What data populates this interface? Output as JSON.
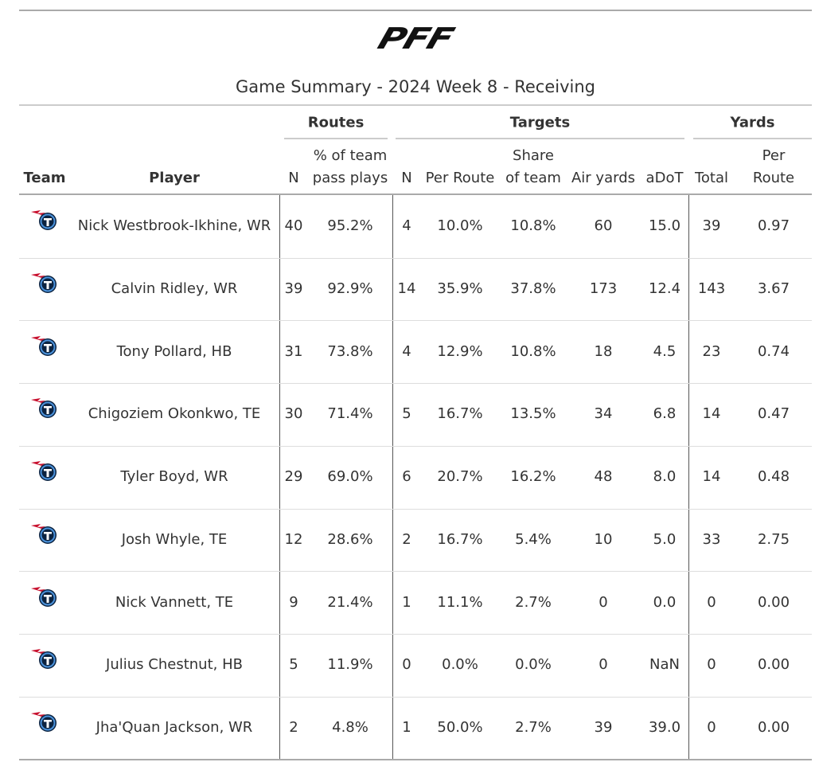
{
  "header": {
    "logo": "PFF",
    "subtitle": "Game Summary - 2024 Week 8 - Receiving"
  },
  "table": {
    "groups": [
      {
        "label": "Routes"
      },
      {
        "label": "Targets"
      },
      {
        "label": "Yards"
      }
    ],
    "columns": [
      "Team",
      "Player",
      "N",
      "% of team\npass plays",
      "N",
      "Per Route",
      "Share\nof team",
      "Air yards",
      "aDoT",
      "Total",
      "Per Route"
    ],
    "rows": [
      [
        "Nick Westbrook-Ikhine, WR",
        "40",
        "95.2%",
        "4",
        "10.0%",
        "10.8%",
        "60",
        "15.0",
        "39",
        "0.97"
      ],
      [
        "Calvin Ridley, WR",
        "39",
        "92.9%",
        "14",
        "35.9%",
        "37.8%",
        "173",
        "12.4",
        "143",
        "3.67"
      ],
      [
        "Tony Pollard, HB",
        "31",
        "73.8%",
        "4",
        "12.9%",
        "10.8%",
        "18",
        "4.5",
        "23",
        "0.74"
      ],
      [
        "Chigoziem Okonkwo, TE",
        "30",
        "71.4%",
        "5",
        "16.7%",
        "13.5%",
        "34",
        "6.8",
        "14",
        "0.47"
      ],
      [
        "Tyler Boyd, WR",
        "29",
        "69.0%",
        "6",
        "20.7%",
        "16.2%",
        "48",
        "8.0",
        "14",
        "0.48"
      ],
      [
        "Josh Whyle, TE",
        "12",
        "28.6%",
        "2",
        "16.7%",
        "5.4%",
        "10",
        "5.0",
        "33",
        "2.75"
      ],
      [
        "Nick Vannett, TE",
        "9",
        "21.4%",
        "1",
        "11.1%",
        "2.7%",
        "0",
        "0.0",
        "0",
        "0.00"
      ],
      [
        "Julius Chestnut, HB",
        "5",
        "11.9%",
        "0",
        "0.0%",
        "0.0%",
        "0",
        "NaN",
        "0",
        "0.00"
      ],
      [
        "Jha'Quan Jackson, WR",
        "2",
        "4.8%",
        "1",
        "50.0%",
        "2.7%",
        "39",
        "39.0",
        "0",
        "0.00"
      ]
    ]
  }
}
